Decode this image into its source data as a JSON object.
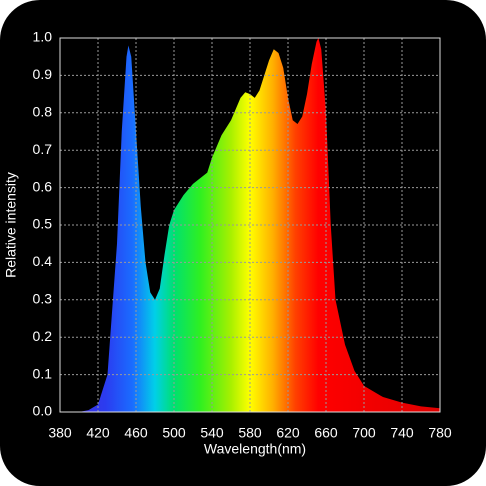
{
  "chart_data": {
    "type": "area",
    "xlabel": "Wavelength(nm)",
    "ylabel": "Relative intensity",
    "x": [
      380,
      400,
      410,
      420,
      430,
      440,
      445,
      450,
      452,
      455,
      460,
      465,
      470,
      475,
      480,
      485,
      490,
      495,
      500,
      510,
      520,
      530,
      535,
      540,
      550,
      560,
      570,
      575,
      580,
      585,
      590,
      600,
      605,
      610,
      615,
      620,
      625,
      630,
      635,
      640,
      645,
      650,
      652,
      655,
      660,
      665,
      670,
      680,
      690,
      700,
      720,
      740,
      760,
      780
    ],
    "series": [
      {
        "values": [
          0,
          0,
          0.005,
          0.02,
          0.1,
          0.45,
          0.75,
          0.95,
          0.98,
          0.95,
          0.75,
          0.55,
          0.4,
          0.32,
          0.3,
          0.33,
          0.42,
          0.5,
          0.54,
          0.58,
          0.61,
          0.63,
          0.64,
          0.68,
          0.74,
          0.78,
          0.84,
          0.855,
          0.85,
          0.84,
          0.86,
          0.94,
          0.97,
          0.96,
          0.92,
          0.84,
          0.78,
          0.77,
          0.79,
          0.85,
          0.93,
          0.99,
          1.0,
          0.97,
          0.8,
          0.5,
          0.3,
          0.18,
          0.11,
          0.07,
          0.04,
          0.025,
          0.015,
          0.01
        ]
      }
    ],
    "xlim": [
      380,
      780
    ],
    "xticks": [
      380,
      420,
      460,
      500,
      540,
      580,
      620,
      660,
      700,
      740,
      780
    ],
    "ylim": [
      0,
      1
    ],
    "yticks": [
      {
        "value": 0,
        "label": "0.0"
      },
      0.1,
      0.2,
      0.3,
      0.4,
      0.5,
      0.6,
      0.7,
      0.8,
      0.9,
      {
        "value": 1,
        "label": "1.0"
      }
    ],
    "grid": true
  }
}
